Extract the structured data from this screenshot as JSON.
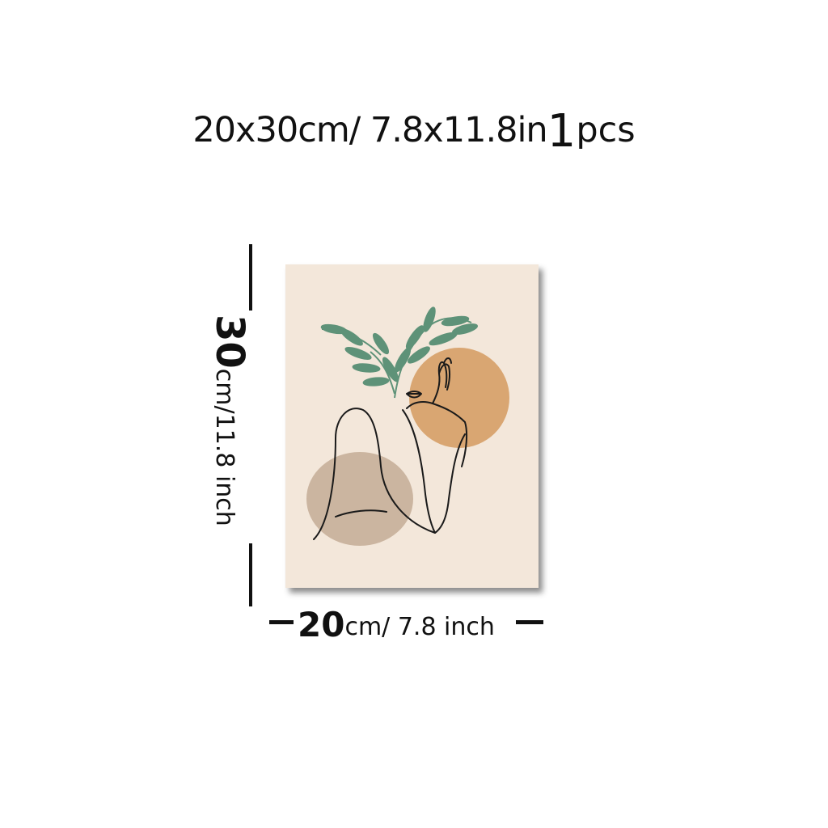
{
  "title": {
    "size": "20x30cm/ 7.8x11.8in",
    "quantity": "1",
    "unit": "pcs"
  },
  "height_label": {
    "number": "30",
    "unit": "cm/11.8 inch"
  },
  "width_label": {
    "number": "20",
    "unit": "cm/ 7.8 inch"
  },
  "colors": {
    "poster_background": "#f3e7da",
    "orange_circle": "#d9a672",
    "taupe_circle": "#cbb5a0",
    "leaves": "#5e9278",
    "line_art": "#1a1a1a"
  }
}
